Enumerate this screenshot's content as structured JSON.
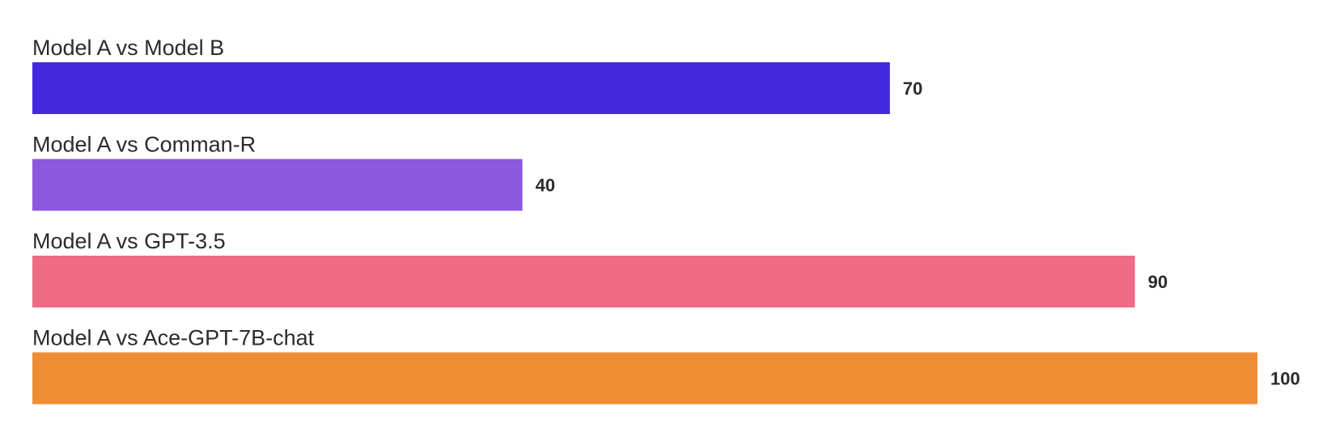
{
  "chart_data": {
    "type": "bar",
    "orientation": "horizontal",
    "title": "",
    "xlabel": "",
    "ylabel": "",
    "grid": false,
    "legend": "none",
    "xlim": [
      0,
      100
    ],
    "categories": [
      "Model A vs Model B",
      "Model A vs Comman-R",
      "Model A vs GPT-3.5",
      "Model A vs Ace-GPT-7B-chat"
    ],
    "values": [
      70,
      40,
      90,
      100
    ],
    "value_labels": [
      "70",
      "40",
      "90",
      "100"
    ],
    "colors": [
      "#4229e0",
      "#8b58de",
      "#ed6b84",
      "#f08d34"
    ]
  }
}
